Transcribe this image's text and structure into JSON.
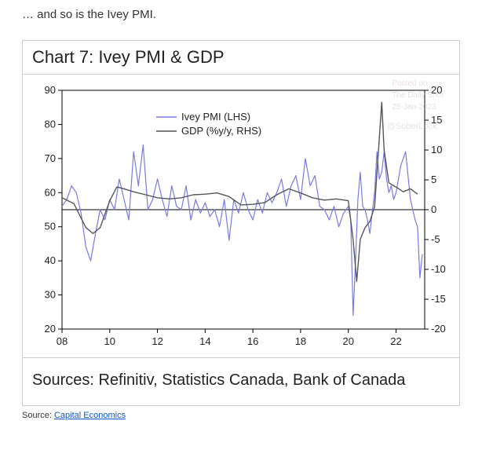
{
  "lead_text": "… and so is the Ivey PMI.",
  "card": {
    "title": "Chart 7: Ivey PMI & GDP",
    "sources_label": "Sources: Refinitiv, Statistics Canada, Bank of Canada",
    "watermark": {
      "line1": "Posted on",
      "line2": "The Daily Shot",
      "line3": "25-Jan-2023",
      "handle": "@SoberLook"
    }
  },
  "source_footer": {
    "prefix": "Source: ",
    "link_text": "Capital Economics"
  },
  "chart": {
    "type": "dual-axis-line",
    "background": "#ffffff",
    "axis_color": "#000000",
    "axis_font_size": 13,
    "legend": {
      "items": [
        {
          "label": "Ivey PMI (LHS)",
          "color": "#7a7ae6"
        },
        {
          "label": "GDP (%y/y, RHS)",
          "color": "#555555"
        }
      ],
      "font_size": 13
    },
    "x": {
      "min": 2008,
      "max": 2023.2,
      "ticks": [
        2008,
        2010,
        2012,
        2014,
        2016,
        2018,
        2020,
        2022
      ],
      "tick_labels": [
        "08",
        "10",
        "12",
        "14",
        "16",
        "18",
        "20",
        "22"
      ]
    },
    "y_left": {
      "min": 20,
      "max": 90,
      "ticks": [
        20,
        30,
        40,
        50,
        60,
        70,
        80,
        90
      ]
    },
    "y_right": {
      "min": -20,
      "max": 20,
      "ticks": [
        -20,
        -15,
        -10,
        -5,
        0,
        5,
        10,
        15,
        20
      ]
    },
    "zero_line_right": 0,
    "series": {
      "ivey_pmi": {
        "axis": "left",
        "color": "#7a7ae6",
        "width": 1.2,
        "data": [
          [
            2008.0,
            56
          ],
          [
            2008.2,
            58
          ],
          [
            2008.4,
            62
          ],
          [
            2008.6,
            60
          ],
          [
            2008.8,
            54
          ],
          [
            2009.0,
            44
          ],
          [
            2009.2,
            40
          ],
          [
            2009.4,
            48
          ],
          [
            2009.6,
            55
          ],
          [
            2009.8,
            52
          ],
          [
            2010.0,
            58
          ],
          [
            2010.2,
            55
          ],
          [
            2010.4,
            64
          ],
          [
            2010.6,
            58
          ],
          [
            2010.8,
            52
          ],
          [
            2011.0,
            72
          ],
          [
            2011.2,
            62
          ],
          [
            2011.4,
            74
          ],
          [
            2011.6,
            55
          ],
          [
            2011.8,
            58
          ],
          [
            2012.0,
            64
          ],
          [
            2012.2,
            58
          ],
          [
            2012.4,
            53
          ],
          [
            2012.6,
            62
          ],
          [
            2012.8,
            56
          ],
          [
            2013.0,
            55
          ],
          [
            2013.2,
            62
          ],
          [
            2013.4,
            52
          ],
          [
            2013.6,
            58
          ],
          [
            2013.8,
            54
          ],
          [
            2014.0,
            57
          ],
          [
            2014.2,
            53
          ],
          [
            2014.4,
            55
          ],
          [
            2014.6,
            50
          ],
          [
            2014.8,
            58
          ],
          [
            2015.0,
            46
          ],
          [
            2015.2,
            58
          ],
          [
            2015.4,
            54
          ],
          [
            2015.6,
            60
          ],
          [
            2015.8,
            55
          ],
          [
            2016.0,
            52
          ],
          [
            2016.2,
            58
          ],
          [
            2016.4,
            54
          ],
          [
            2016.6,
            60
          ],
          [
            2016.8,
            57
          ],
          [
            2017.0,
            60
          ],
          [
            2017.2,
            64
          ],
          [
            2017.4,
            56
          ],
          [
            2017.6,
            62
          ],
          [
            2017.8,
            65
          ],
          [
            2018.0,
            58
          ],
          [
            2018.2,
            70
          ],
          [
            2018.4,
            62
          ],
          [
            2018.6,
            65
          ],
          [
            2018.8,
            56
          ],
          [
            2019.0,
            55
          ],
          [
            2019.2,
            52
          ],
          [
            2019.4,
            56
          ],
          [
            2019.6,
            50
          ],
          [
            2019.8,
            54
          ],
          [
            2020.0,
            56
          ],
          [
            2020.1,
            52
          ],
          [
            2020.2,
            24
          ],
          [
            2020.3,
            40
          ],
          [
            2020.4,
            58
          ],
          [
            2020.5,
            66
          ],
          [
            2020.6,
            56
          ],
          [
            2020.7,
            55
          ],
          [
            2020.8,
            52
          ],
          [
            2020.9,
            48
          ],
          [
            2021.0,
            54
          ],
          [
            2021.1,
            60
          ],
          [
            2021.2,
            72
          ],
          [
            2021.3,
            64
          ],
          [
            2021.4,
            66
          ],
          [
            2021.5,
            72
          ],
          [
            2021.6,
            64
          ],
          [
            2021.7,
            60
          ],
          [
            2021.8,
            62
          ],
          [
            2021.9,
            58
          ],
          [
            2022.0,
            60
          ],
          [
            2022.2,
            68
          ],
          [
            2022.4,
            72
          ],
          [
            2022.6,
            58
          ],
          [
            2022.8,
            52
          ],
          [
            2022.9,
            50
          ],
          [
            2023.0,
            35
          ],
          [
            2023.1,
            42
          ]
        ]
      },
      "gdp": {
        "axis": "right",
        "color": "#555555",
        "width": 1.4,
        "data": [
          [
            2008.0,
            2.0
          ],
          [
            2008.5,
            1.0
          ],
          [
            2009.0,
            -3.0
          ],
          [
            2009.3,
            -4.0
          ],
          [
            2009.6,
            -3.0
          ],
          [
            2010.0,
            1.5
          ],
          [
            2010.3,
            3.8
          ],
          [
            2010.6,
            3.5
          ],
          [
            2011.0,
            3.0
          ],
          [
            2011.5,
            2.5
          ],
          [
            2012.0,
            2.0
          ],
          [
            2012.5,
            1.8
          ],
          [
            2013.0,
            2.0
          ],
          [
            2013.5,
            2.5
          ],
          [
            2014.0,
            2.6
          ],
          [
            2014.5,
            2.8
          ],
          [
            2015.0,
            2.2
          ],
          [
            2015.5,
            0.8
          ],
          [
            2016.0,
            0.9
          ],
          [
            2016.5,
            1.2
          ],
          [
            2017.0,
            2.5
          ],
          [
            2017.5,
            3.5
          ],
          [
            2018.0,
            2.8
          ],
          [
            2018.5,
            2.0
          ],
          [
            2019.0,
            1.6
          ],
          [
            2019.5,
            1.8
          ],
          [
            2020.0,
            1.5
          ],
          [
            2020.2,
            -5.0
          ],
          [
            2020.35,
            -12.0
          ],
          [
            2020.5,
            -5.0
          ],
          [
            2020.7,
            -3.0
          ],
          [
            2020.9,
            -2.0
          ],
          [
            2021.1,
            0.5
          ],
          [
            2021.3,
            12.0
          ],
          [
            2021.4,
            18.0
          ],
          [
            2021.5,
            10.0
          ],
          [
            2021.7,
            4.5
          ],
          [
            2021.9,
            4.0
          ],
          [
            2022.0,
            3.8
          ],
          [
            2022.3,
            3.0
          ],
          [
            2022.6,
            3.5
          ],
          [
            2022.9,
            2.6
          ]
        ]
      }
    }
  }
}
